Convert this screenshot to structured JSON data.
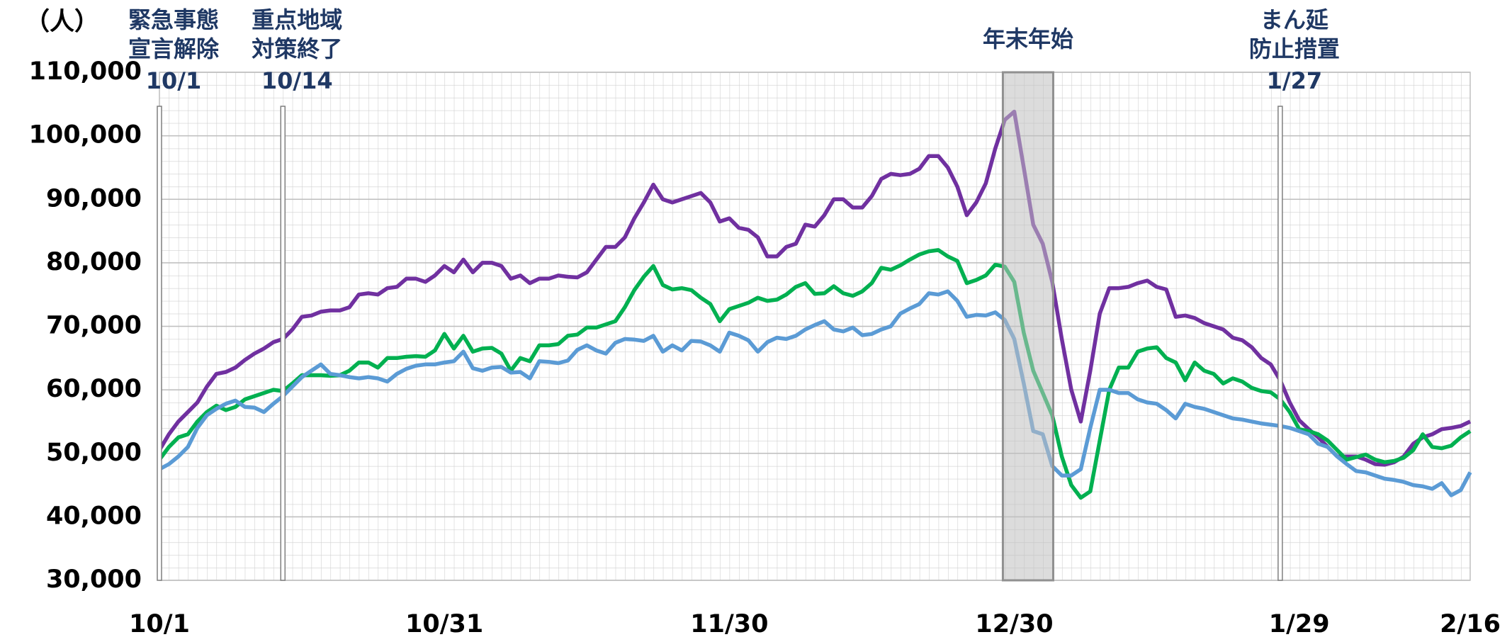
{
  "chart_data": {
    "type": "line",
    "y_unit": "（人）",
    "categories": [
      "10/1",
      null,
      null,
      null,
      null,
      null,
      null,
      null,
      null,
      null,
      null,
      null,
      null,
      null,
      null,
      null,
      null,
      null,
      null,
      null,
      null,
      null,
      null,
      null,
      null,
      null,
      null,
      null,
      null,
      null,
      "10/31",
      null,
      null,
      null,
      null,
      null,
      null,
      null,
      null,
      null,
      null,
      null,
      null,
      null,
      null,
      null,
      null,
      null,
      null,
      null,
      null,
      null,
      null,
      null,
      null,
      null,
      null,
      null,
      null,
      null,
      "11/30",
      null,
      null,
      null,
      null,
      null,
      null,
      null,
      null,
      null,
      null,
      null,
      null,
      null,
      null,
      null,
      null,
      null,
      null,
      null,
      null,
      null,
      null,
      null,
      null,
      null,
      null,
      null,
      null,
      null,
      "12/30",
      null,
      null,
      null,
      null,
      null,
      null,
      null,
      null,
      null,
      null,
      null,
      null,
      null,
      null,
      null,
      null,
      null,
      null,
      null,
      null,
      null,
      null,
      null,
      null,
      null,
      null,
      null,
      null,
      null,
      "1/29",
      null,
      null,
      null,
      null,
      null,
      null,
      null,
      null,
      null,
      null,
      null,
      null,
      null,
      null,
      null,
      null,
      null,
      "2/16"
    ],
    "series": [
      {
        "color": "#7030a0",
        "values": [
          50500,
          53000,
          55000,
          56500,
          58000,
          60500,
          62500,
          62800,
          63500,
          64700,
          65700,
          66500,
          67500,
          68000,
          69500,
          71500,
          71700,
          72300,
          72500,
          72500,
          73000,
          75000,
          75200,
          75000,
          76000,
          76200,
          77500,
          77500,
          77000,
          78000,
          79500,
          78500,
          80500,
          78500,
          80000,
          80000,
          79500,
          77500,
          78000,
          76800,
          77500,
          77500,
          78000,
          77800,
          77700,
          78500,
          80500,
          82500,
          82500,
          84000,
          87000,
          89500,
          92300,
          90000,
          89500,
          90000,
          90500,
          91000,
          89500,
          86500,
          87000,
          85500,
          85200,
          84000,
          81000,
          81000,
          82500,
          83000,
          86000,
          85700,
          87500,
          90000,
          90000,
          88700,
          88700,
          90500,
          93200,
          94000,
          93800,
          94000,
          94800,
          96800,
          96800,
          95000,
          92000,
          87500,
          89500,
          92500,
          98000,
          102500,
          103800,
          95000,
          86000,
          83000,
          77000,
          68000,
          60000,
          55000,
          63000,
          72000,
          76000,
          76000,
          76200,
          76800,
          77200,
          76200,
          75800,
          71500,
          71700,
          71300,
          70500,
          70000,
          69500,
          68200,
          67800,
          66700,
          65000,
          64000,
          61500,
          58000,
          55200,
          53800,
          52500,
          51000,
          49500,
          49500,
          49500,
          49000,
          48300,
          48200,
          48600,
          49500,
          51500,
          52500,
          53000,
          53800,
          54000,
          54300,
          55000
        ]
      },
      {
        "color": "#00b050",
        "values": [
          49000,
          51000,
          52500,
          53000,
          55000,
          56500,
          57500,
          56800,
          57300,
          58500,
          59000,
          59500,
          60000,
          59800,
          61000,
          62300,
          62300,
          62300,
          62200,
          62300,
          63000,
          64300,
          64300,
          63500,
          65000,
          65000,
          65200,
          65300,
          65200,
          66200,
          68800,
          66500,
          68500,
          66000,
          66500,
          66600,
          65700,
          63000,
          65000,
          64500,
          67000,
          67000,
          67200,
          68500,
          68700,
          69800,
          69800,
          70300,
          70800,
          73000,
          75700,
          77800,
          79500,
          76500,
          75800,
          76000,
          75700,
          74500,
          73500,
          70800,
          72700,
          73200,
          73700,
          74500,
          74000,
          74200,
          75000,
          76200,
          76800,
          75100,
          75200,
          76300,
          75200,
          74800,
          75500,
          76800,
          79200,
          78900,
          79600,
          80500,
          81300,
          81800,
          82000,
          81000,
          80300,
          76800,
          77300,
          78000,
          79700,
          79400,
          77000,
          69000,
          63000,
          59500,
          56000,
          49500,
          45000,
          43000,
          44000,
          52000,
          60000,
          63500,
          63500,
          66000,
          66500,
          66700,
          65000,
          64300,
          61500,
          64300,
          63000,
          62500,
          61000,
          61800,
          61300,
          60300,
          59800,
          59600,
          58500,
          56500,
          53800,
          53500,
          53000,
          52000,
          50500,
          49000,
          49400,
          49800,
          49000,
          48600,
          48800,
          49300,
          50500,
          53000,
          51000,
          50800,
          51200,
          52500,
          53500
        ]
      },
      {
        "color": "#5b9bd5",
        "values": [
          47500,
          48300,
          49500,
          51000,
          54000,
          56000,
          57000,
          57800,
          58300,
          57300,
          57200,
          56500,
          57800,
          59000,
          60500,
          62000,
          63000,
          64000,
          62500,
          62300,
          62000,
          61800,
          62000,
          61800,
          61300,
          62500,
          63300,
          63800,
          64000,
          64000,
          64300,
          64500,
          66000,
          63400,
          63000,
          63500,
          63600,
          62700,
          62800,
          61800,
          64500,
          64400,
          64200,
          64600,
          66300,
          67000,
          66200,
          65700,
          67400,
          68000,
          67900,
          67700,
          68500,
          66000,
          67000,
          66200,
          67700,
          67600,
          67000,
          66000,
          69000,
          68500,
          67800,
          66000,
          67500,
          68200,
          68000,
          68500,
          69500,
          70200,
          70800,
          69500,
          69200,
          69800,
          68600,
          68800,
          69500,
          70000,
          72000,
          72800,
          73500,
          75200,
          75000,
          75500,
          74000,
          71500,
          71800,
          71700,
          72200,
          71000,
          68000,
          61000,
          53500,
          53000,
          48000,
          46500,
          46500,
          47500,
          54000,
          60000,
          60000,
          59500,
          59500,
          58500,
          58000,
          57800,
          56800,
          55500,
          57800,
          57300,
          57000,
          56500,
          56000,
          55500,
          55300,
          55000,
          54700,
          54500,
          54300,
          54000,
          53500,
          53000,
          51500,
          51000,
          49500,
          48300,
          47200,
          47000,
          46500,
          46000,
          45800,
          45500,
          45000,
          44800,
          44400,
          45300,
          43400,
          44200,
          47000
        ]
      }
    ],
    "ylim": [
      30000,
      110000
    ],
    "yticks": [
      {
        "value": 30000,
        "label": "30,000"
      },
      {
        "value": 40000,
        "label": "40,000"
      },
      {
        "value": 50000,
        "label": "50,000"
      },
      {
        "value": 60000,
        "label": "60,000"
      },
      {
        "value": 70000,
        "label": "70,000"
      },
      {
        "value": 80000,
        "label": "80,000"
      },
      {
        "value": 90000,
        "label": "90,000"
      },
      {
        "value": 100000,
        "label": "100,000"
      },
      {
        "value": 110000,
        "label": "110,000"
      }
    ],
    "grid": true,
    "events": [
      {
        "lines": [
          "緊急事態",
          "宣言解除"
        ],
        "date": "10/1",
        "at": 0
      },
      {
        "lines": [
          "重点地域",
          "対策終了"
        ],
        "date": "10/14",
        "at": 13
      },
      {
        "lines": [
          "まん延",
          "防止措置"
        ],
        "date": "1/27",
        "at": 118
      }
    ],
    "period": {
      "label": "年末年始",
      "from": 88.8,
      "to": 94.1
    }
  }
}
